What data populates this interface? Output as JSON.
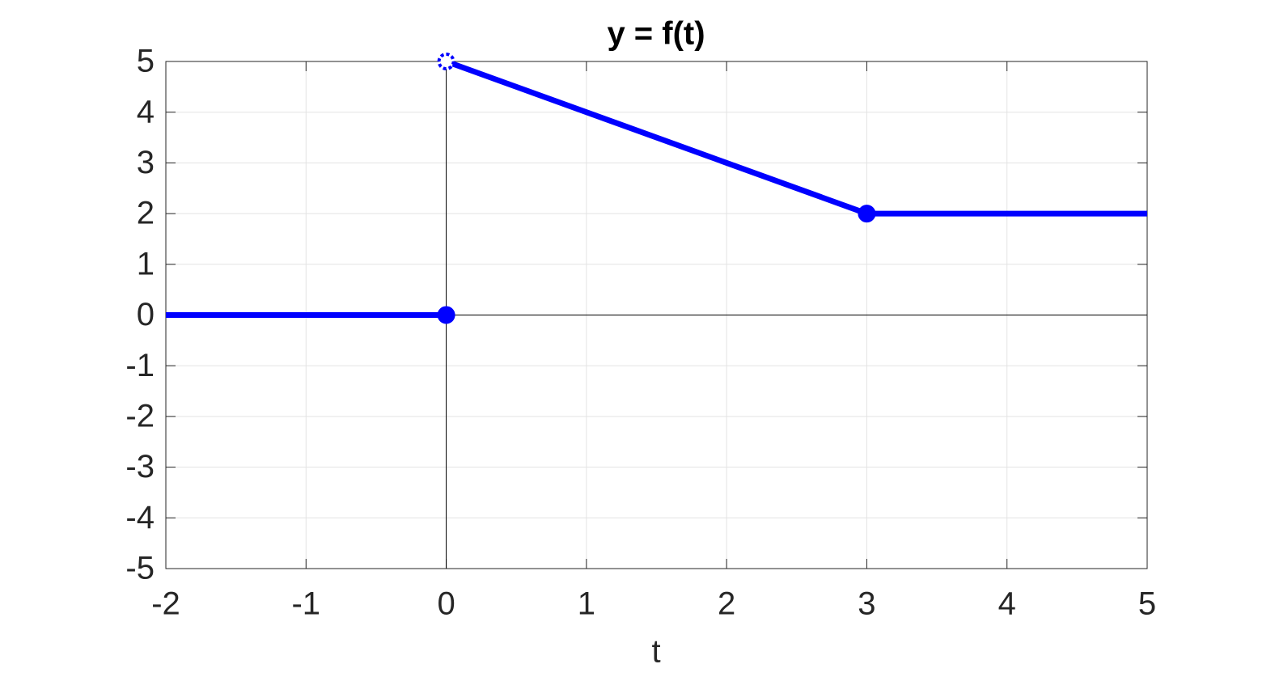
{
  "chart_data": {
    "type": "line",
    "title": "y = f(t)",
    "x_label": "t",
    "x": [
      -2,
      0,
      0,
      0,
      3,
      5
    ],
    "values": [
      0,
      0,
      null,
      5,
      2,
      2
    ],
    "color": "#0000ff",
    "points": {
      "x": [
        0,
        0,
        3
      ],
      "y": [
        0,
        5,
        2
      ],
      "fill": [
        "filled",
        "open",
        "filled"
      ]
    },
    "xlim": [
      -2,
      5
    ],
    "xticks": [
      -2,
      -1,
      0,
      1,
      2,
      3,
      4,
      5
    ],
    "ylim": [
      -5,
      5
    ],
    "yticks": [
      -5,
      -4,
      -3,
      -2,
      -1,
      0,
      1,
      2,
      3,
      4,
      5
    ],
    "grid": true,
    "axis_lines": true
  }
}
